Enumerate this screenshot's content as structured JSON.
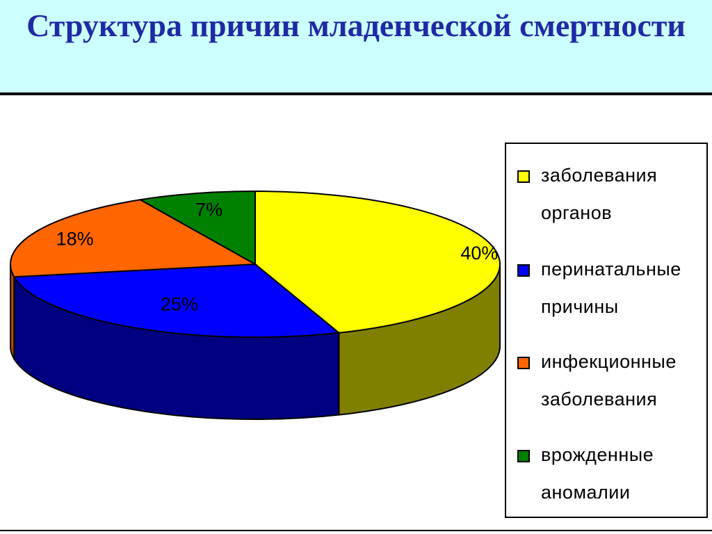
{
  "title": "Структура причин  младенческой смертности",
  "chart_data": {
    "type": "pie",
    "title": "Структура причин  младенческой смертности",
    "categories": [
      "заболевания органов",
      "перинатальные причины",
      "инфекционные заболевания",
      "врожденные аномалии"
    ],
    "values": [
      40,
      25,
      18,
      7
    ],
    "labels": [
      "40%",
      "25%",
      "18%",
      "7%"
    ],
    "colors": [
      "#ffff00",
      "#0000ff",
      "#ff6600",
      "#008000"
    ],
    "side_colors": [
      "#808000",
      "#000080",
      "#b34700",
      "#004d00"
    ],
    "legend_position": "right",
    "style": "3d"
  }
}
